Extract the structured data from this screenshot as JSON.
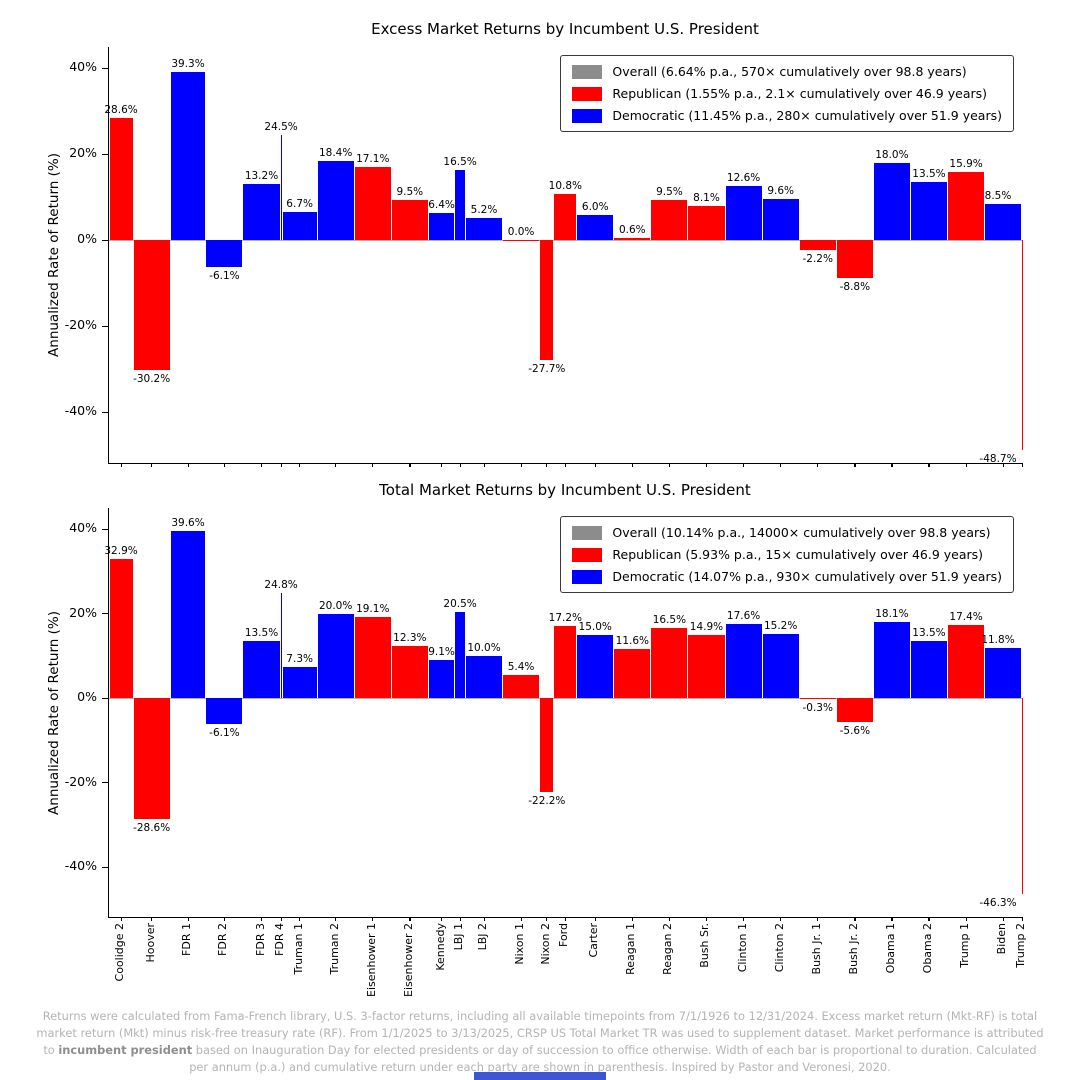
{
  "party_colors": {
    "R": "#ff0000",
    "D": "#0000ff"
  },
  "chart_data": [
    {
      "type": "bar",
      "title": "Excess Market Returns by Incumbent U.S. President",
      "xlabel": "",
      "ylabel": "Annualized Rate of Return (%)",
      "ylim": [
        -52,
        45
      ],
      "yticks": [
        40,
        20,
        0,
        -20,
        -40
      ],
      "grid": false,
      "legend_position": "top-right",
      "show_x_labels": false,
      "categories": [
        "Coolidge 2",
        "Hoover",
        "FDR 1",
        "FDR 2",
        "FDR 3",
        "FDR 4",
        "Truman 1",
        "Truman 2",
        "Eisenhower 1",
        "Eisenhower 2",
        "Kennedy",
        "LBJ 1",
        "LBJ 2",
        "Nixon 1",
        "Nixon 2",
        "Ford",
        "Carter",
        "Reagan 1",
        "Reagan 2",
        "Bush Sr.",
        "Clinton 1",
        "Clinton 2",
        "Bush Jr. 1",
        "Bush Jr. 2",
        "Obama 1",
        "Obama 2",
        "Trump 1",
        "Biden",
        "Trump 2"
      ],
      "values": [
        28.6,
        -30.2,
        39.3,
        -6.1,
        13.2,
        24.5,
        6.7,
        18.4,
        17.1,
        9.5,
        6.4,
        16.5,
        5.2,
        0.0,
        -27.7,
        10.8,
        6.0,
        0.6,
        9.5,
        8.1,
        12.6,
        9.6,
        -2.2,
        -8.8,
        18.0,
        13.5,
        15.9,
        8.5,
        -48.7
      ],
      "parties": [
        "R",
        "R",
        "D",
        "D",
        "D",
        "D",
        "D",
        "D",
        "R",
        "R",
        "D",
        "D",
        "D",
        "R",
        "R",
        "R",
        "D",
        "R",
        "R",
        "R",
        "D",
        "D",
        "R",
        "R",
        "D",
        "D",
        "R",
        "D",
        "R"
      ],
      "durations_years": [
        2.6,
        4,
        3.85,
        4,
        4,
        0.23,
        3.77,
        4,
        4,
        4,
        2.84,
        1.16,
        4,
        4,
        1.55,
        2.45,
        4,
        4,
        4,
        4,
        4,
        4,
        4,
        4,
        4,
        4,
        4,
        4,
        0.14
      ],
      "legend": [
        {
          "label": "Overall (6.64% p.a., 570× cumulatively over 98.8 years)",
          "color": "#8c8c8c"
        },
        {
          "label": "Republican (1.55% p.a., 2.1× cumulatively over 46.9 years)",
          "color": "#ff0000"
        },
        {
          "label": "Democratic (11.45% p.a., 280× cumulatively over 51.9 years)",
          "color": "#0000ff"
        }
      ]
    },
    {
      "type": "bar",
      "title": "Total Market Returns by Incumbent U.S. President",
      "xlabel": "",
      "ylabel": "Annualized Rate of Return (%)",
      "ylim": [
        -52,
        45
      ],
      "yticks": [
        40,
        20,
        0,
        -20,
        -40
      ],
      "grid": false,
      "legend_position": "top-right",
      "show_x_labels": true,
      "categories": [
        "Coolidge 2",
        "Hoover",
        "FDR 1",
        "FDR 2",
        "FDR 3",
        "FDR 4",
        "Truman 1",
        "Truman 2",
        "Eisenhower 1",
        "Eisenhower 2",
        "Kennedy",
        "LBJ 1",
        "LBJ 2",
        "Nixon 1",
        "Nixon 2",
        "Ford",
        "Carter",
        "Reagan 1",
        "Reagan 2",
        "Bush Sr.",
        "Clinton 1",
        "Clinton 2",
        "Bush Jr. 1",
        "Bush Jr. 2",
        "Obama 1",
        "Obama 2",
        "Trump 1",
        "Biden",
        "Trump 2"
      ],
      "values": [
        32.9,
        -28.6,
        39.6,
        -6.1,
        13.5,
        24.8,
        7.3,
        20.0,
        19.1,
        12.3,
        9.1,
        20.5,
        10.0,
        5.4,
        -22.2,
        17.2,
        15.0,
        11.6,
        16.5,
        14.9,
        17.6,
        15.2,
        -0.3,
        -5.6,
        18.1,
        13.5,
        17.4,
        11.8,
        -46.3
      ],
      "parties": [
        "R",
        "R",
        "D",
        "D",
        "D",
        "D",
        "D",
        "D",
        "R",
        "R",
        "D",
        "D",
        "D",
        "R",
        "R",
        "R",
        "D",
        "R",
        "R",
        "R",
        "D",
        "D",
        "R",
        "R",
        "D",
        "D",
        "R",
        "D",
        "R"
      ],
      "durations_years": [
        2.6,
        4,
        3.85,
        4,
        4,
        0.23,
        3.77,
        4,
        4,
        4,
        2.84,
        1.16,
        4,
        4,
        1.55,
        2.45,
        4,
        4,
        4,
        4,
        4,
        4,
        4,
        4,
        4,
        4,
        4,
        4,
        0.14
      ],
      "legend": [
        {
          "label": "Overall (10.14% p.a., 14000× cumulatively over 98.8 years)",
          "color": "#8c8c8c"
        },
        {
          "label": "Republican (5.93% p.a., 15× cumulatively over 46.9 years)",
          "color": "#ff0000"
        },
        {
          "label": "Democratic (14.07% p.a., 930× cumulatively over 51.9 years)",
          "color": "#0000ff"
        }
      ]
    }
  ],
  "footer": {
    "segments": [
      {
        "text": "Returns were calculated from Fama-French library, U.S. 3-factor returns, including all available timepoints from 7/1/1926 to 12/31/2024. Excess market return (Mkt-RF) is total market return (Mkt) minus risk-free treasury rate (RF). From 1/1/2025 to 3/13/2025, CRSP US Total Market TR was used to supplement dataset. Market performance is attributed to ",
        "bold": false
      },
      {
        "text": "incumbent president",
        "bold": true
      },
      {
        "text": " based on Inauguration Day for elected presidents or day of succession to office otherwise. Width of each bar is proportional to duration. Calculated per annum (p.a.) and cumulative return under each party are shown in parenthesis. Inspired by Pastor and Veronesi, 2020.",
        "bold": false
      }
    ]
  }
}
